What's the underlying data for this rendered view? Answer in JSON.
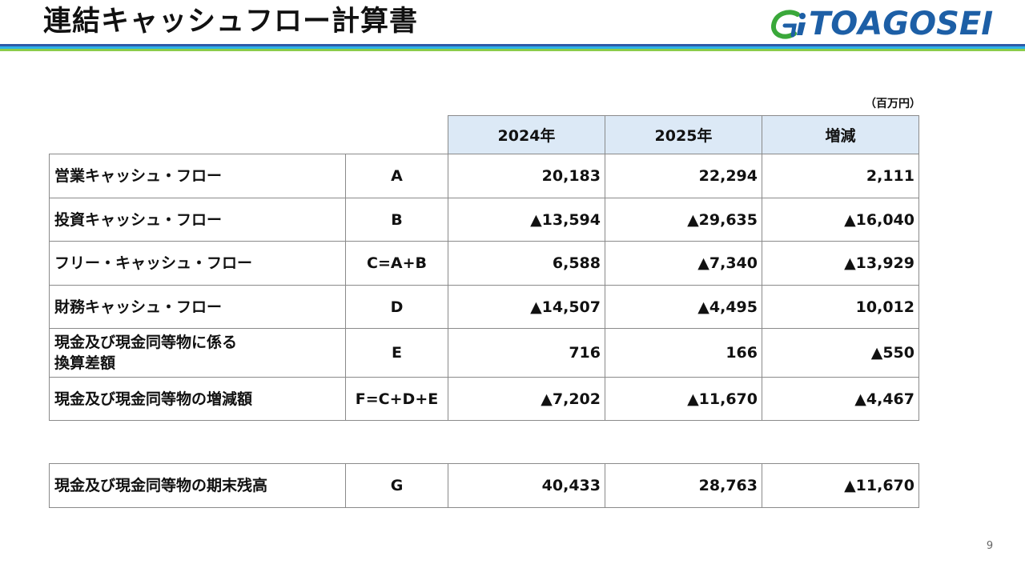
{
  "title": "連結キャッシュフロー計算書",
  "logo": {
    "text": "TOAGOSEI",
    "primary_color": "#1d5fa6",
    "accent_color": "#3aa83a"
  },
  "unit": "（百万円）",
  "table": {
    "columns": [
      "2024年",
      "2025年",
      "増減"
    ],
    "rows": [
      {
        "label": "営業キャッシュ・フロー",
        "code": "A",
        "values": [
          "20,183",
          "22,294",
          "2,111"
        ]
      },
      {
        "label": "投資キャッシュ・フロー",
        "code": "B",
        "values": [
          "▲13,594",
          "▲29,635",
          "▲16,040"
        ]
      },
      {
        "label": "フリー・キャッシュ・フロー",
        "code": "C=A+B",
        "values": [
          "6,588",
          "▲7,340",
          "▲13,929"
        ]
      },
      {
        "label": "財務キャッシュ・フロー",
        "code": "D",
        "values": [
          "▲14,507",
          "▲4,495",
          "10,012"
        ]
      },
      {
        "label_line1": "現金及び現金同等物に係る",
        "label_line2": "換算差額",
        "code": "E",
        "values": [
          "716",
          "166",
          "▲550"
        ]
      },
      {
        "label": "現金及び現金同等物の増減額",
        "code": "F=C+D+E",
        "values": [
          "▲7,202",
          "▲11,670",
          "▲4,467"
        ]
      }
    ]
  },
  "end_balance": {
    "label": "現金及び現金同等物の期末残高",
    "code": "G",
    "values": [
      "40,433",
      "28,763",
      "▲11,670"
    ]
  },
  "page_number": "9",
  "colors": {
    "header_fill": "#dce9f6",
    "rule_blue": "#2d5aa8",
    "rule_cyan": "#2db2e8",
    "rule_green": "#8ccc4a"
  }
}
